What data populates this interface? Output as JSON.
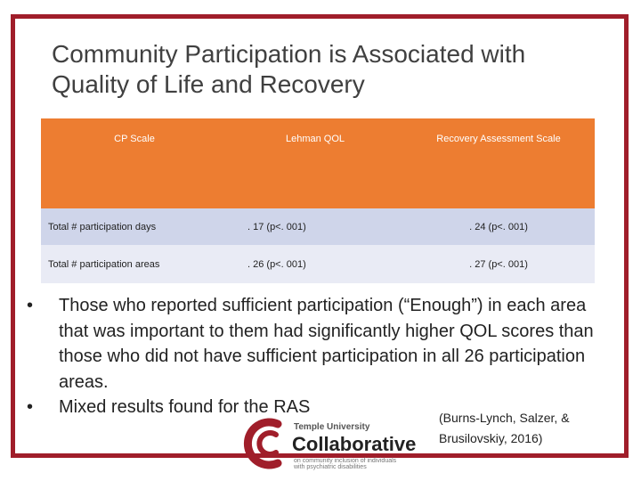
{
  "title": {
    "line1": "Community Participation is Associated with",
    "line2": "Quality of Life and Recovery"
  },
  "table": {
    "headers": [
      "CP Scale",
      "Lehman QOL",
      "Recovery Assessment Scale"
    ],
    "rows": [
      [
        "Total # participation days",
        ". 17 (p<. 001)",
        ". 24 (p<. 001)"
      ],
      [
        "Total # participation areas",
        ". 26 (p<. 001)",
        ". 27 (p<. 001)"
      ]
    ]
  },
  "bullets": [
    "Those who reported sufficient participation (“Enough”) in each area that was important to them had significantly higher QOL scores than those who did not have sufficient participation in all 26 participation areas.",
    "Mixed results found for the RAS"
  ],
  "bullet_symbol": "•",
  "citation": {
    "line1": "(Burns-Lynch, Salzer, &",
    "line2": "Brusilovskiy, 2016)"
  },
  "logo": {
    "small": "Temple University",
    "big": "Collaborative",
    "tagline": "on community inclusion of individuals with psychiatric disabilities"
  },
  "colors": {
    "frame": "#a01e2a",
    "header_bg": "#ed7d31",
    "row1_bg": "#cfd5ea",
    "row2_bg": "#e9ebf5"
  }
}
